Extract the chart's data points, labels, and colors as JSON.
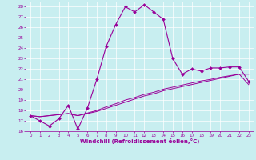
{
  "xlabel": "Windchill (Refroidissement éolien,°C)",
  "xlim": [
    -0.5,
    23.5
  ],
  "ylim": [
    16,
    28.5
  ],
  "yticks": [
    16,
    17,
    18,
    19,
    20,
    21,
    22,
    23,
    24,
    25,
    26,
    27,
    28
  ],
  "xticks": [
    0,
    1,
    2,
    3,
    4,
    5,
    6,
    7,
    8,
    9,
    10,
    11,
    12,
    13,
    14,
    15,
    16,
    17,
    18,
    19,
    20,
    21,
    22,
    23
  ],
  "bg_color": "#c8eef0",
  "line_color": "#990099",
  "grid_color": "#ffffff",
  "line1_x": [
    0,
    1,
    2,
    3,
    4,
    5,
    6,
    7,
    8,
    9,
    10,
    11,
    12,
    13,
    14,
    15,
    16,
    17,
    18,
    19,
    20,
    21,
    22,
    23
  ],
  "line1_y": [
    17.5,
    17.0,
    16.5,
    17.2,
    18.5,
    16.2,
    18.2,
    21.0,
    24.2,
    26.3,
    28.0,
    27.5,
    28.2,
    27.5,
    26.8,
    23.0,
    21.5,
    22.0,
    21.8,
    22.1,
    22.1,
    22.2,
    22.2,
    20.8
  ],
  "line2_x": [
    0,
    1,
    2,
    3,
    4,
    5,
    6,
    7,
    8,
    9,
    10,
    11,
    12,
    13,
    14,
    15,
    16,
    17,
    18,
    19,
    20,
    21,
    22,
    23
  ],
  "line2_y": [
    17.5,
    17.4,
    17.5,
    17.6,
    17.7,
    17.5,
    17.7,
    17.9,
    18.2,
    18.5,
    18.8,
    19.1,
    19.4,
    19.6,
    19.9,
    20.1,
    20.3,
    20.5,
    20.7,
    20.9,
    21.1,
    21.3,
    21.5,
    21.5
  ],
  "line3_x": [
    0,
    1,
    2,
    3,
    4,
    5,
    6,
    7,
    8,
    9,
    10,
    11,
    12,
    13,
    14,
    15,
    16,
    17,
    18,
    19,
    20,
    21,
    22,
    23
  ],
  "line3_y": [
    17.5,
    17.4,
    17.5,
    17.6,
    17.7,
    17.5,
    17.75,
    18.0,
    18.35,
    18.65,
    19.0,
    19.25,
    19.55,
    19.75,
    20.05,
    20.25,
    20.45,
    20.65,
    20.85,
    21.0,
    21.2,
    21.35,
    21.5,
    20.5
  ]
}
